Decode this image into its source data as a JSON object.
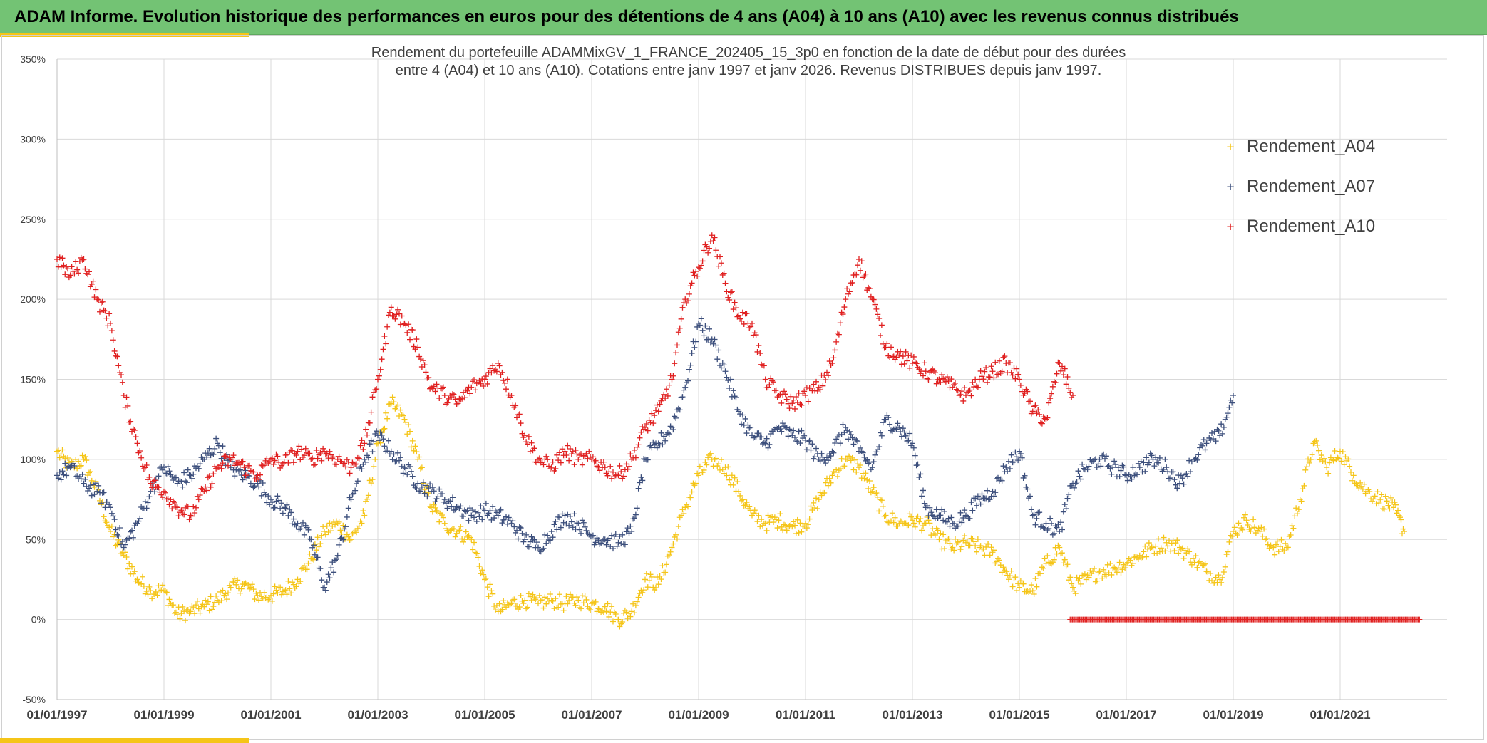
{
  "header": {
    "title": "ADAM Informe. Evolution historique des performances en euros pour des détentions de 4 ans (A04) à 10 ans (A10) avec les revenus connus distribués"
  },
  "colors": {
    "banner": "#73c374",
    "accent": "#f5c518",
    "A04": "#f5c518",
    "A07": "#3c4f7c",
    "A10": "#e02020",
    "grid": "#d9d9d9",
    "axis_text": "#404040"
  },
  "chart_data": {
    "type": "scatter",
    "title_line1": "Rendement du portefeuille ADAMMixGV_1_FRANCE_202405_15_3p0 en fonction de la date de début pour des durées",
    "title_line2": "entre 4 (A04) et 10 ans (A10). Cotations entre janv 1997 et janv 2026. Revenus DISTRIBUES depuis janv 1997.",
    "xlabel": "",
    "ylabel": "",
    "x_range": [
      1997.0,
      2022.5
    ],
    "ylim": [
      -50,
      350
    ],
    "y_ticks": [
      -50,
      0,
      50,
      100,
      150,
      200,
      250,
      300,
      350
    ],
    "y_tick_labels": [
      "-50%",
      "0%",
      "50%",
      "100%",
      "150%",
      "200%",
      "250%",
      "300%",
      "350%"
    ],
    "x_ticks": [
      1997,
      1999,
      2001,
      2003,
      2005,
      2007,
      2009,
      2011,
      2013,
      2015,
      2017,
      2019,
      2021
    ],
    "x_tick_labels": [
      "01/01/1997",
      "01/01/1999",
      "01/01/2001",
      "01/01/2003",
      "01/01/2005",
      "01/01/2007",
      "01/01/2009",
      "01/01/2011",
      "01/01/2013",
      "01/01/2015",
      "01/01/2017",
      "01/01/2019",
      "01/01/2021"
    ],
    "legend_position": "right",
    "marker": "+",
    "series": [
      {
        "name": "Rendement_A04",
        "x": [
          1997.0,
          1997.25,
          1997.5,
          1997.75,
          1998.0,
          1998.25,
          1998.5,
          1998.75,
          1999.0,
          1999.25,
          1999.5,
          1999.75,
          2000.0,
          2000.25,
          2000.5,
          2000.75,
          2001.0,
          2001.25,
          2001.5,
          2001.75,
          2002.0,
          2002.25,
          2002.5,
          2002.75,
          2003.0,
          2003.25,
          2003.5,
          2003.75,
          2004.0,
          2004.25,
          2004.5,
          2004.75,
          2005.0,
          2005.25,
          2005.5,
          2005.75,
          2006.0,
          2006.25,
          2006.5,
          2006.75,
          2007.0,
          2007.25,
          2007.5,
          2007.75,
          2008.0,
          2008.25,
          2008.5,
          2008.75,
          2009.0,
          2009.25,
          2009.5,
          2009.75,
          2010.0,
          2010.25,
          2010.5,
          2010.75,
          2011.0,
          2011.25,
          2011.5,
          2011.75,
          2012.0,
          2012.25,
          2012.5,
          2012.75,
          2013.0,
          2013.25,
          2013.5,
          2013.75,
          2014.0,
          2014.25,
          2014.5,
          2014.75,
          2015.0,
          2015.25,
          2015.5,
          2015.75,
          2016.0,
          2016.25,
          2016.5,
          2016.75,
          2017.0,
          2017.25,
          2017.5,
          2017.75,
          2018.0,
          2018.25,
          2018.5,
          2018.75,
          2019.0,
          2019.25,
          2019.5,
          2019.75,
          2020.0,
          2020.25,
          2020.5,
          2020.75,
          2021.0,
          2021.25,
          2021.5,
          2021.75,
          2022.0,
          2022.2
        ],
        "values": [
          105,
          95,
          100,
          80,
          55,
          40,
          25,
          18,
          18,
          3,
          5,
          8,
          12,
          20,
          22,
          15,
          15,
          18,
          25,
          38,
          55,
          60,
          50,
          65,
          110,
          135,
          125,
          100,
          70,
          60,
          55,
          50,
          25,
          5,
          10,
          12,
          10,
          12,
          10,
          12,
          10,
          8,
          0,
          5,
          25,
          22,
          45,
          70,
          90,
          100,
          95,
          80,
          65,
          60,
          62,
          58,
          60,
          75,
          90,
          100,
          95,
          80,
          65,
          60,
          62,
          60,
          50,
          45,
          48,
          45,
          42,
          30,
          20,
          18,
          35,
          45,
          20,
          25,
          30,
          32,
          35,
          40,
          45,
          48,
          45,
          38,
          30,
          25,
          55,
          62,
          55,
          45,
          45,
          75,
          110,
          95,
          105,
          90,
          80,
          75,
          70,
          55
        ]
      },
      {
        "name": "Rendement_A07",
        "x": [
          1997.0,
          1997.25,
          1997.5,
          1997.75,
          1998.0,
          1998.25,
          1998.5,
          1998.75,
          1999.0,
          1999.25,
          1999.5,
          1999.75,
          2000.0,
          2000.25,
          2000.5,
          2000.75,
          2001.0,
          2001.25,
          2001.5,
          2001.75,
          2002.0,
          2002.25,
          2002.5,
          2002.75,
          2003.0,
          2003.25,
          2003.5,
          2003.75,
          2004.0,
          2004.25,
          2004.5,
          2004.75,
          2005.0,
          2005.25,
          2005.5,
          2005.75,
          2006.0,
          2006.25,
          2006.5,
          2006.75,
          2007.0,
          2007.25,
          2007.5,
          2007.75,
          2008.0,
          2008.25,
          2008.5,
          2008.75,
          2009.0,
          2009.25,
          2009.5,
          2009.75,
          2010.0,
          2010.25,
          2010.5,
          2010.75,
          2011.0,
          2011.25,
          2011.5,
          2011.75,
          2012.0,
          2012.25,
          2012.5,
          2012.75,
          2013.0,
          2013.25,
          2013.5,
          2013.75,
          2014.0,
          2014.25,
          2014.5,
          2014.75,
          2015.0,
          2015.25,
          2015.5,
          2015.75,
          2016.0,
          2016.25,
          2016.5,
          2016.75,
          2017.0,
          2017.25,
          2017.5,
          2017.75,
          2018.0,
          2018.25,
          2018.5,
          2018.75,
          2019.0
        ],
        "values": [
          90,
          95,
          85,
          80,
          70,
          45,
          60,
          80,
          95,
          85,
          90,
          100,
          110,
          95,
          90,
          85,
          75,
          70,
          60,
          50,
          20,
          40,
          75,
          100,
          115,
          105,
          95,
          85,
          80,
          75,
          70,
          65,
          68,
          65,
          60,
          50,
          45,
          55,
          65,
          60,
          52,
          50,
          48,
          55,
          100,
          110,
          120,
          145,
          185,
          175,
          155,
          130,
          115,
          110,
          120,
          115,
          112,
          100,
          105,
          120,
          105,
          95,
          125,
          120,
          110,
          70,
          65,
          60,
          65,
          75,
          80,
          95,
          105,
          65,
          60,
          55,
          85,
          95,
          100,
          95,
          90,
          95,
          100,
          95,
          85,
          100,
          110,
          115,
          140
        ]
      },
      {
        "name": "Rendement_A10",
        "x": [
          1997.0,
          1997.25,
          1997.5,
          1997.75,
          1998.0,
          1998.25,
          1998.5,
          1998.75,
          1999.0,
          1999.25,
          1999.5,
          1999.75,
          2000.0,
          2000.25,
          2000.5,
          2000.75,
          2001.0,
          2001.25,
          2001.5,
          2001.75,
          2002.0,
          2002.25,
          2002.5,
          2002.75,
          2003.0,
          2003.25,
          2003.5,
          2003.75,
          2004.0,
          2004.25,
          2004.5,
          2004.75,
          2005.0,
          2005.25,
          2005.5,
          2005.75,
          2006.0,
          2006.25,
          2006.5,
          2006.75,
          2007.0,
          2007.25,
          2007.5,
          2007.75,
          2008.0,
          2008.25,
          2008.5,
          2008.75,
          2009.0,
          2009.25,
          2009.5,
          2009.75,
          2010.0,
          2010.25,
          2010.5,
          2010.75,
          2011.0,
          2011.25,
          2011.5,
          2011.75,
          2012.0,
          2012.25,
          2012.5,
          2012.75,
          2013.0,
          2013.25,
          2013.5,
          2013.75,
          2014.0,
          2014.25,
          2014.5,
          2014.75,
          2015.0,
          2015.25,
          2015.5,
          2015.75,
          2016.0
        ],
        "values": [
          225,
          215,
          225,
          200,
          185,
          140,
          110,
          85,
          80,
          70,
          65,
          80,
          95,
          100,
          95,
          90,
          100,
          98,
          105,
          100,
          105,
          100,
          95,
          110,
          150,
          195,
          185,
          170,
          145,
          140,
          135,
          145,
          150,
          160,
          140,
          115,
          100,
          95,
          105,
          100,
          100,
          95,
          90,
          100,
          120,
          130,
          150,
          200,
          220,
          240,
          210,
          190,
          185,
          150,
          140,
          135,
          140,
          145,
          160,
          200,
          225,
          200,
          170,
          165,
          160,
          155,
          150,
          145,
          140,
          150,
          155,
          160,
          150,
          130,
          125,
          160,
          140
        ]
      }
    ],
    "zero_band": {
      "color": "#e02020",
      "x_start": 2015.95,
      "x_end": 2022.5,
      "value": 0
    }
  }
}
